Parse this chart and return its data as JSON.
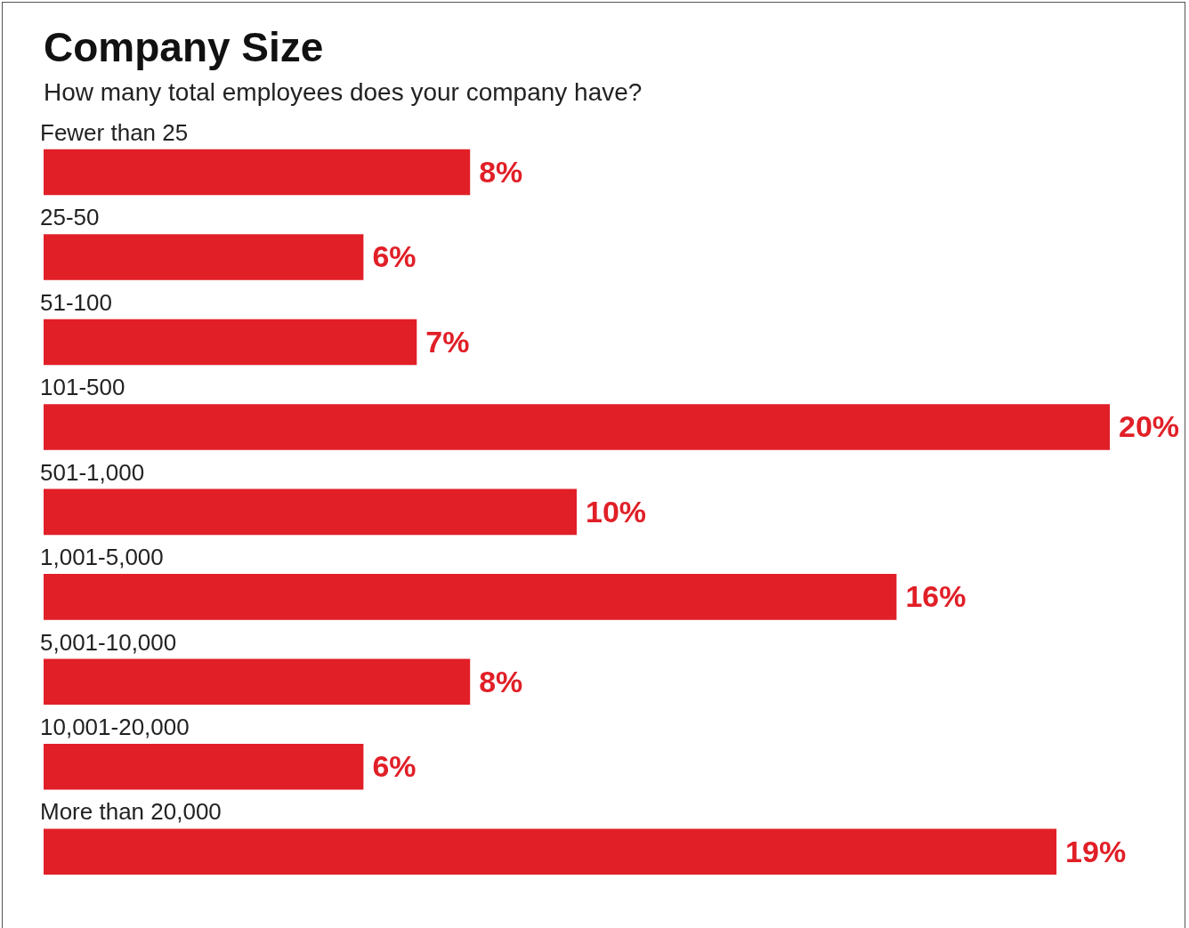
{
  "chart_data": {
    "type": "bar",
    "orientation": "horizontal",
    "title": "Company Size",
    "subtitle": "How many total employees does your company have?",
    "categories": [
      "Fewer than 25",
      "25-50",
      "51-100",
      "101-500",
      "501-1,000",
      "1,001-5,000",
      "5,001-10,000",
      "10,001-20,000",
      "More than 20,000"
    ],
    "values": [
      8,
      6,
      7,
      20,
      10,
      16,
      8,
      6,
      19
    ],
    "value_labels": [
      "8%",
      "6%",
      "7%",
      "20%",
      "10%",
      "16%",
      "8%",
      "6%",
      "19%"
    ],
    "color": "#e11f27"
  }
}
